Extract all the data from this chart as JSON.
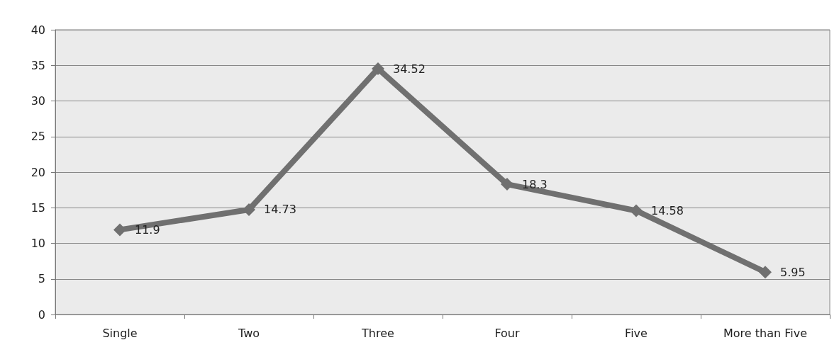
{
  "chart_data": {
    "type": "line",
    "categories": [
      "Single",
      "Two",
      "Three",
      "Four",
      "Five",
      "More than Five"
    ],
    "series": [
      {
        "color": "#707070",
        "values": [
          11.9,
          14.73,
          34.52,
          18.3,
          14.58,
          5.95
        ]
      }
    ],
    "ylim": [
      0,
      40
    ],
    "yticks": [
      0,
      5,
      10,
      15,
      20,
      25,
      30,
      35,
      40
    ],
    "grid": "y",
    "marker": "diamond",
    "line_style": "solid",
    "data_labels": true
  }
}
